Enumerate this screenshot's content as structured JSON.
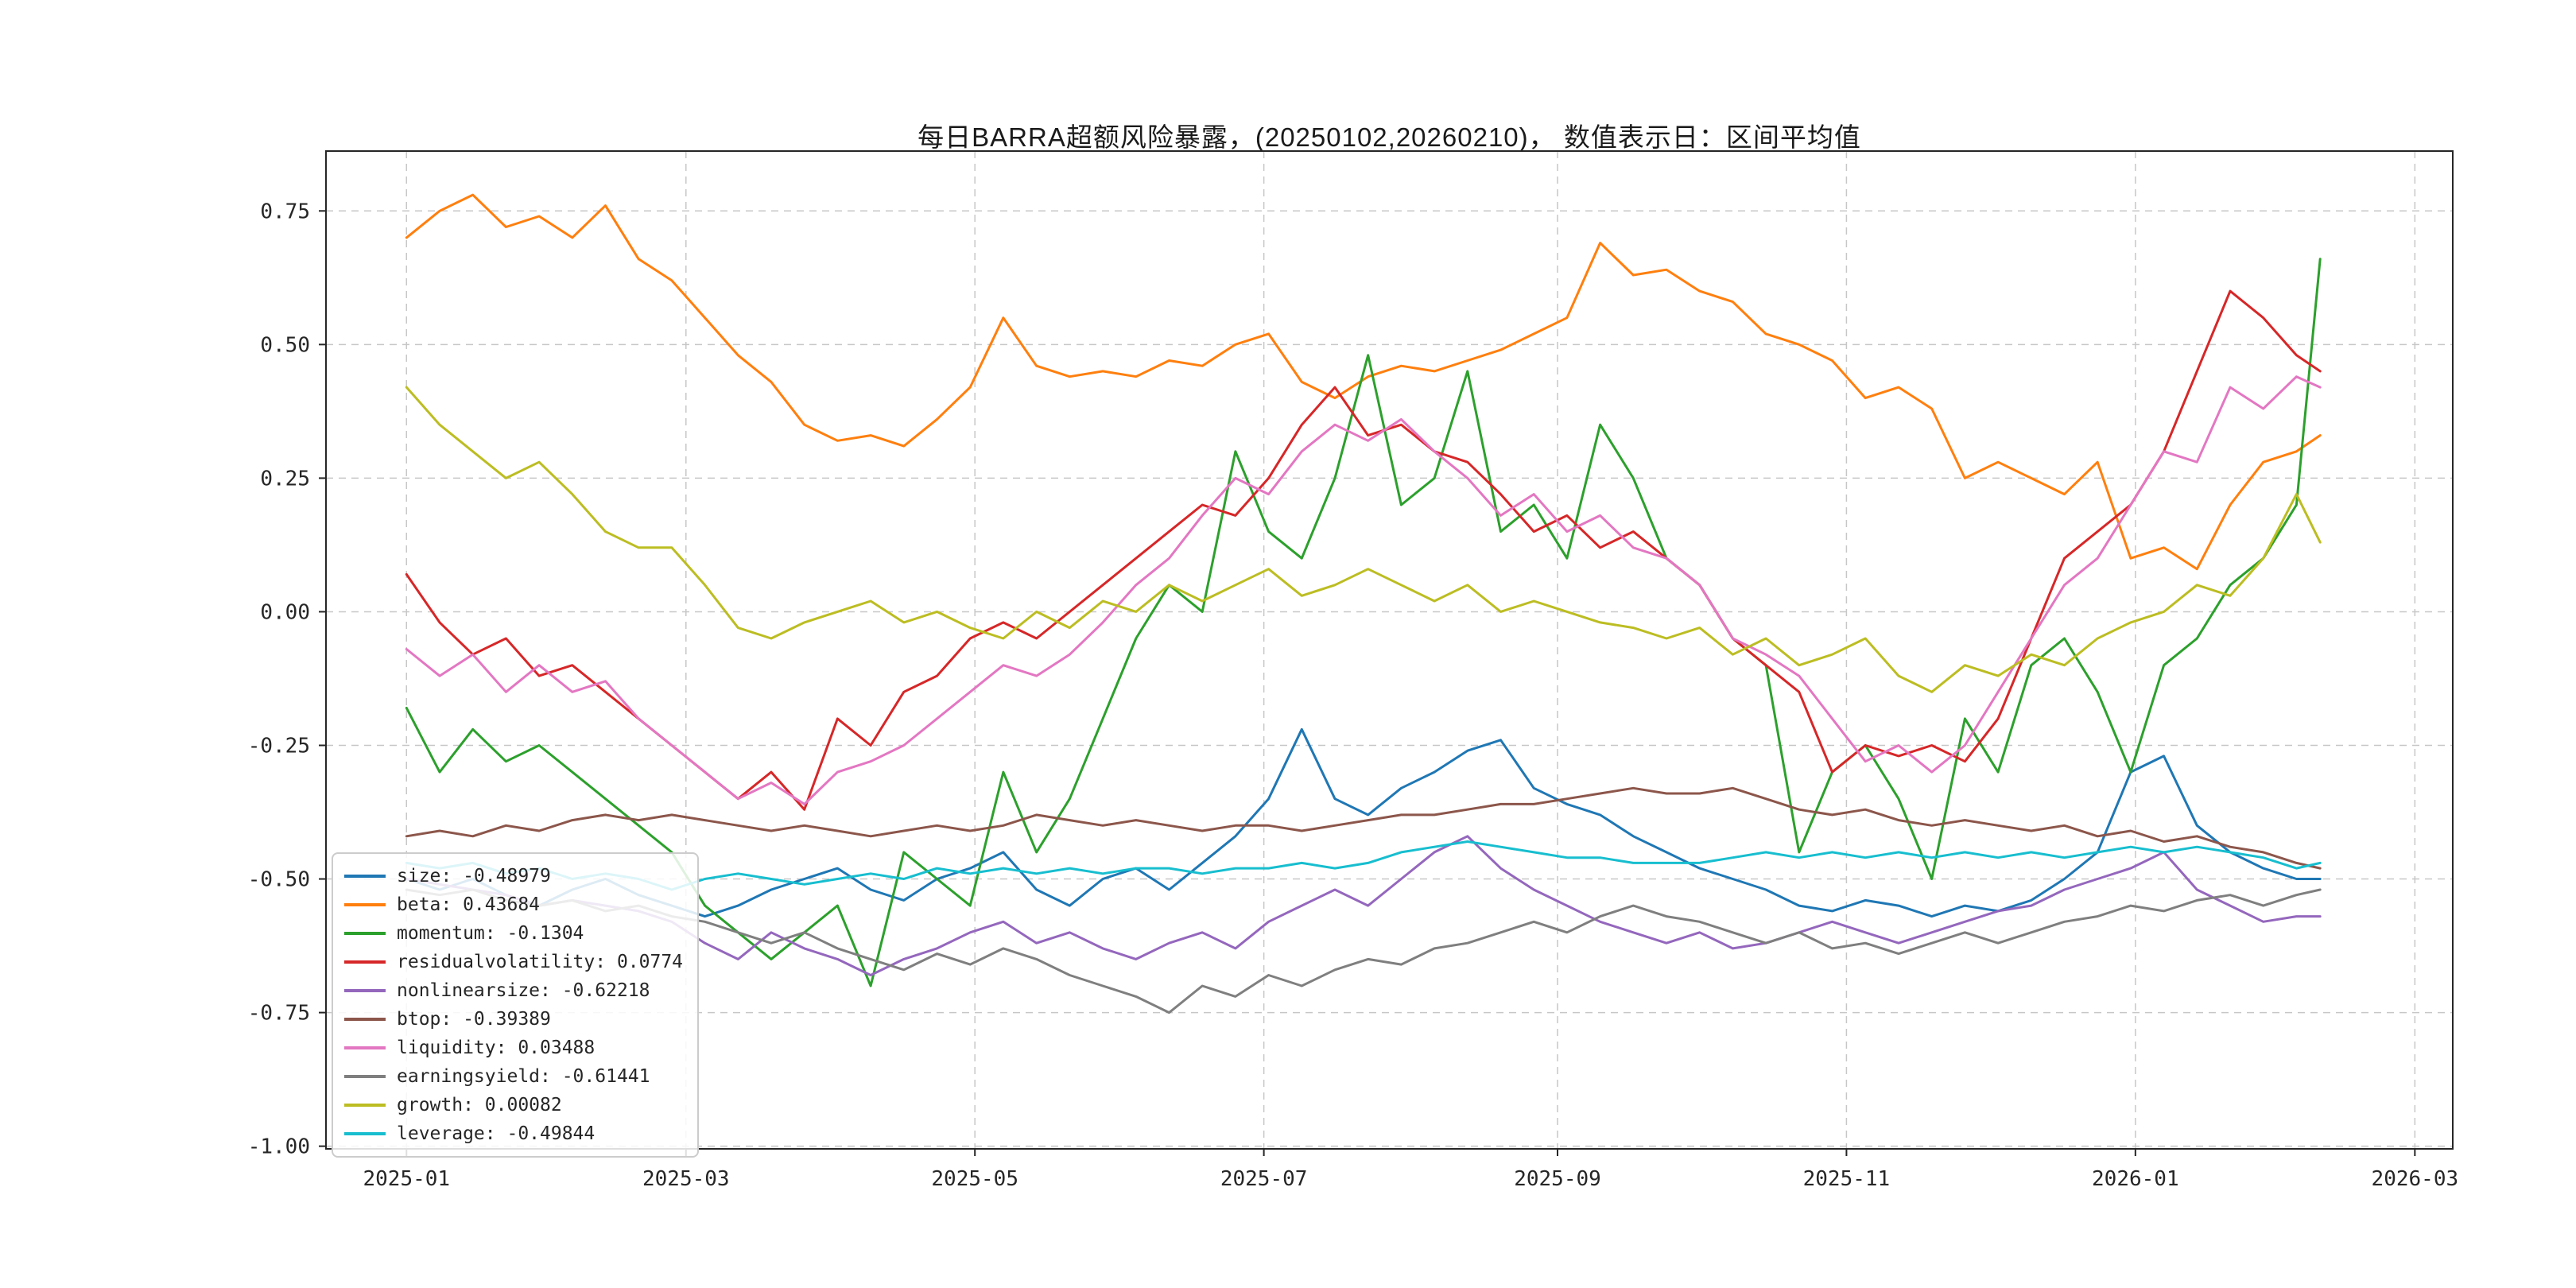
{
  "chart_data": {
    "type": "line",
    "title": "每日BARRA超额风险暴露，(20250102,20260210)， 数值表示日：区间平均值",
    "grid": "dashed",
    "legend_position": "lower-left",
    "colors": {
      "grid": "#c7c7c7",
      "axis": "#262626",
      "text": "#262626",
      "background": "#ffffff"
    },
    "xlim": [
      -17,
      432
    ],
    "ylim": [
      -1.005,
      0.862
    ],
    "x_ticks": [
      {
        "label": "2025-01",
        "day": 0
      },
      {
        "label": "2025-03",
        "day": 59
      },
      {
        "label": "2025-05",
        "day": 120
      },
      {
        "label": "2025-07",
        "day": 181
      },
      {
        "label": "2025-09",
        "day": 243
      },
      {
        "label": "2025-11",
        "day": 304
      },
      {
        "label": "2026-01",
        "day": 365
      },
      {
        "label": "2026-03",
        "day": 424
      }
    ],
    "y_ticks": [
      {
        "label": "0.75",
        "value": 0.75
      },
      {
        "label": "0.50",
        "value": 0.5
      },
      {
        "label": "0.25",
        "value": 0.25
      },
      {
        "label": "0.00",
        "value": 0.0
      },
      {
        "label": "-0.25",
        "value": -0.25
      },
      {
        "label": "-0.50",
        "value": -0.5
      },
      {
        "label": "-0.75",
        "value": -0.75
      },
      {
        "label": "-1.00",
        "value": -1.0
      }
    ],
    "x_unit": "days since 2025-01-02",
    "t": [
      0,
      7,
      14,
      21,
      28,
      35,
      42,
      49,
      56,
      63,
      70,
      77,
      84,
      91,
      98,
      105,
      112,
      119,
      126,
      133,
      140,
      147,
      154,
      161,
      168,
      175,
      182,
      189,
      196,
      203,
      210,
      217,
      224,
      231,
      238,
      245,
      252,
      259,
      266,
      273,
      280,
      287,
      294,
      301,
      308,
      315,
      322,
      329,
      336,
      343,
      350,
      357,
      364,
      371,
      378,
      385,
      392,
      399,
      404
    ],
    "series": [
      {
        "name": "size",
        "label": "size: -0.48979",
        "mean": -0.48979,
        "color": "#1f77b4",
        "values": [
          -0.5,
          -0.52,
          -0.5,
          -0.53,
          -0.55,
          -0.52,
          -0.5,
          -0.53,
          -0.55,
          -0.57,
          -0.55,
          -0.52,
          -0.5,
          -0.48,
          -0.52,
          -0.54,
          -0.5,
          -0.48,
          -0.45,
          -0.52,
          -0.55,
          -0.5,
          -0.48,
          -0.52,
          -0.47,
          -0.42,
          -0.35,
          -0.22,
          -0.35,
          -0.38,
          -0.33,
          -0.3,
          -0.26,
          -0.24,
          -0.33,
          -0.36,
          -0.38,
          -0.42,
          -0.45,
          -0.48,
          -0.5,
          -0.52,
          -0.55,
          -0.56,
          -0.54,
          -0.55,
          -0.57,
          -0.55,
          -0.56,
          -0.54,
          -0.5,
          -0.45,
          -0.3,
          -0.27,
          -0.4,
          -0.45,
          -0.48,
          -0.5,
          -0.5
        ]
      },
      {
        "name": "beta",
        "label": "beta: 0.43684",
        "mean": 0.43684,
        "color": "#ff7f0e",
        "values": [
          0.7,
          0.75,
          0.78,
          0.72,
          0.74,
          0.7,
          0.76,
          0.66,
          0.62,
          0.55,
          0.48,
          0.43,
          0.35,
          0.32,
          0.33,
          0.31,
          0.36,
          0.42,
          0.55,
          0.46,
          0.44,
          0.45,
          0.44,
          0.47,
          0.46,
          0.5,
          0.52,
          0.43,
          0.4,
          0.44,
          0.46,
          0.45,
          0.47,
          0.49,
          0.52,
          0.55,
          0.69,
          0.63,
          0.64,
          0.6,
          0.58,
          0.52,
          0.5,
          0.47,
          0.4,
          0.42,
          0.38,
          0.25,
          0.28,
          0.25,
          0.22,
          0.28,
          0.1,
          0.12,
          0.08,
          0.2,
          0.28,
          0.3,
          0.33
        ]
      },
      {
        "name": "momentum",
        "label": "momentum: -0.1304",
        "mean": -0.1304,
        "color": "#2ca02c",
        "values": [
          -0.18,
          -0.3,
          -0.22,
          -0.28,
          -0.25,
          -0.3,
          -0.35,
          -0.4,
          -0.45,
          -0.55,
          -0.6,
          -0.65,
          -0.6,
          -0.55,
          -0.7,
          -0.45,
          -0.5,
          -0.55,
          -0.3,
          -0.45,
          -0.35,
          -0.2,
          -0.05,
          0.05,
          0.0,
          0.3,
          0.15,
          0.1,
          0.25,
          0.48,
          0.2,
          0.25,
          0.45,
          0.15,
          0.2,
          0.1,
          0.35,
          0.25,
          0.1,
          0.05,
          -0.05,
          -0.1,
          -0.45,
          -0.3,
          -0.25,
          -0.35,
          -0.5,
          -0.2,
          -0.3,
          -0.1,
          -0.05,
          -0.15,
          -0.3,
          -0.1,
          -0.05,
          0.05,
          0.1,
          0.2,
          0.66
        ]
      },
      {
        "name": "residualvolatility",
        "label": "residualvolatility: 0.0774",
        "mean": 0.0774,
        "color": "#d62728",
        "values": [
          0.07,
          -0.02,
          -0.08,
          -0.05,
          -0.12,
          -0.1,
          -0.15,
          -0.2,
          -0.25,
          -0.3,
          -0.35,
          -0.3,
          -0.37,
          -0.2,
          -0.25,
          -0.15,
          -0.12,
          -0.05,
          -0.02,
          -0.05,
          0.0,
          0.05,
          0.1,
          0.15,
          0.2,
          0.18,
          0.25,
          0.35,
          0.42,
          0.33,
          0.35,
          0.3,
          0.28,
          0.22,
          0.15,
          0.18,
          0.12,
          0.15,
          0.1,
          0.05,
          -0.05,
          -0.1,
          -0.15,
          -0.3,
          -0.25,
          -0.27,
          -0.25,
          -0.28,
          -0.2,
          -0.05,
          0.1,
          0.15,
          0.2,
          0.3,
          0.45,
          0.6,
          0.55,
          0.48,
          0.45
        ]
      },
      {
        "name": "nonlinearsize",
        "label": "nonlinearsize: -0.62218",
        "mean": -0.62218,
        "color": "#9467bd",
        "values": [
          -0.5,
          -0.51,
          -0.52,
          -0.53,
          -0.55,
          -0.54,
          -0.55,
          -0.56,
          -0.58,
          -0.62,
          -0.65,
          -0.6,
          -0.63,
          -0.65,
          -0.68,
          -0.65,
          -0.63,
          -0.6,
          -0.58,
          -0.62,
          -0.6,
          -0.63,
          -0.65,
          -0.62,
          -0.6,
          -0.63,
          -0.58,
          -0.55,
          -0.52,
          -0.55,
          -0.5,
          -0.45,
          -0.42,
          -0.48,
          -0.52,
          -0.55,
          -0.58,
          -0.6,
          -0.62,
          -0.6,
          -0.63,
          -0.62,
          -0.6,
          -0.58,
          -0.6,
          -0.62,
          -0.6,
          -0.58,
          -0.56,
          -0.55,
          -0.52,
          -0.5,
          -0.48,
          -0.45,
          -0.52,
          -0.55,
          -0.58,
          -0.57,
          -0.57
        ]
      },
      {
        "name": "btop",
        "label": "btop: -0.39389",
        "mean": -0.39389,
        "color": "#8c564b",
        "values": [
          -0.42,
          -0.41,
          -0.42,
          -0.4,
          -0.41,
          -0.39,
          -0.38,
          -0.39,
          -0.38,
          -0.39,
          -0.4,
          -0.41,
          -0.4,
          -0.41,
          -0.42,
          -0.41,
          -0.4,
          -0.41,
          -0.4,
          -0.38,
          -0.39,
          -0.4,
          -0.39,
          -0.4,
          -0.41,
          -0.4,
          -0.4,
          -0.41,
          -0.4,
          -0.39,
          -0.38,
          -0.38,
          -0.37,
          -0.36,
          -0.36,
          -0.35,
          -0.34,
          -0.33,
          -0.34,
          -0.34,
          -0.33,
          -0.35,
          -0.37,
          -0.38,
          -0.37,
          -0.39,
          -0.4,
          -0.39,
          -0.4,
          -0.41,
          -0.4,
          -0.42,
          -0.41,
          -0.43,
          -0.42,
          -0.44,
          -0.45,
          -0.47,
          -0.48
        ]
      },
      {
        "name": "liquidity",
        "label": "liquidity: 0.03488",
        "mean": 0.03488,
        "color": "#e377c2",
        "values": [
          -0.07,
          -0.12,
          -0.08,
          -0.15,
          -0.1,
          -0.15,
          -0.13,
          -0.2,
          -0.25,
          -0.3,
          -0.35,
          -0.32,
          -0.36,
          -0.3,
          -0.28,
          -0.25,
          -0.2,
          -0.15,
          -0.1,
          -0.12,
          -0.08,
          -0.02,
          0.05,
          0.1,
          0.18,
          0.25,
          0.22,
          0.3,
          0.35,
          0.32,
          0.36,
          0.3,
          0.25,
          0.18,
          0.22,
          0.15,
          0.18,
          0.12,
          0.1,
          0.05,
          -0.05,
          -0.08,
          -0.12,
          -0.2,
          -0.28,
          -0.25,
          -0.3,
          -0.25,
          -0.15,
          -0.05,
          0.05,
          0.1,
          0.2,
          0.3,
          0.28,
          0.42,
          0.38,
          0.44,
          0.42
        ]
      },
      {
        "name": "earningsyield",
        "label": "earningsyield: -0.61441",
        "mean": -0.61441,
        "color": "#7f7f7f",
        "values": [
          -0.52,
          -0.53,
          -0.52,
          -0.54,
          -0.55,
          -0.54,
          -0.56,
          -0.55,
          -0.57,
          -0.58,
          -0.6,
          -0.62,
          -0.6,
          -0.63,
          -0.65,
          -0.67,
          -0.64,
          -0.66,
          -0.63,
          -0.65,
          -0.68,
          -0.7,
          -0.72,
          -0.75,
          -0.7,
          -0.72,
          -0.68,
          -0.7,
          -0.67,
          -0.65,
          -0.66,
          -0.63,
          -0.62,
          -0.6,
          -0.58,
          -0.6,
          -0.57,
          -0.55,
          -0.57,
          -0.58,
          -0.6,
          -0.62,
          -0.6,
          -0.63,
          -0.62,
          -0.64,
          -0.62,
          -0.6,
          -0.62,
          -0.6,
          -0.58,
          -0.57,
          -0.55,
          -0.56,
          -0.54,
          -0.53,
          -0.55,
          -0.53,
          -0.52
        ]
      },
      {
        "name": "growth",
        "label": "growth: 0.00082",
        "mean": 0.00082,
        "color": "#bcbd22",
        "values": [
          0.42,
          0.35,
          0.3,
          0.25,
          0.28,
          0.22,
          0.15,
          0.12,
          0.12,
          0.05,
          -0.03,
          -0.05,
          -0.02,
          0.0,
          0.02,
          -0.02,
          0.0,
          -0.03,
          -0.05,
          0.0,
          -0.03,
          0.02,
          0.0,
          0.05,
          0.02,
          0.05,
          0.08,
          0.03,
          0.05,
          0.08,
          0.05,
          0.02,
          0.05,
          0.0,
          0.02,
          0.0,
          -0.02,
          -0.03,
          -0.05,
          -0.03,
          -0.08,
          -0.05,
          -0.1,
          -0.08,
          -0.05,
          -0.12,
          -0.15,
          -0.1,
          -0.12,
          -0.08,
          -0.1,
          -0.05,
          -0.02,
          0.0,
          0.05,
          0.03,
          0.1,
          0.22,
          0.13
        ]
      },
      {
        "name": "leverage",
        "label": "leverage: -0.49844",
        "mean": -0.49844,
        "color": "#17becf",
        "values": [
          -0.47,
          -0.48,
          -0.47,
          -0.49,
          -0.48,
          -0.5,
          -0.49,
          -0.5,
          -0.52,
          -0.5,
          -0.49,
          -0.5,
          -0.51,
          -0.5,
          -0.49,
          -0.5,
          -0.48,
          -0.49,
          -0.48,
          -0.49,
          -0.48,
          -0.49,
          -0.48,
          -0.48,
          -0.49,
          -0.48,
          -0.48,
          -0.47,
          -0.48,
          -0.47,
          -0.45,
          -0.44,
          -0.43,
          -0.44,
          -0.45,
          -0.46,
          -0.46,
          -0.47,
          -0.47,
          -0.47,
          -0.46,
          -0.45,
          -0.46,
          -0.45,
          -0.46,
          -0.45,
          -0.46,
          -0.45,
          -0.46,
          -0.45,
          -0.46,
          -0.45,
          -0.44,
          -0.45,
          -0.44,
          -0.45,
          -0.46,
          -0.48,
          -0.47
        ]
      }
    ]
  }
}
